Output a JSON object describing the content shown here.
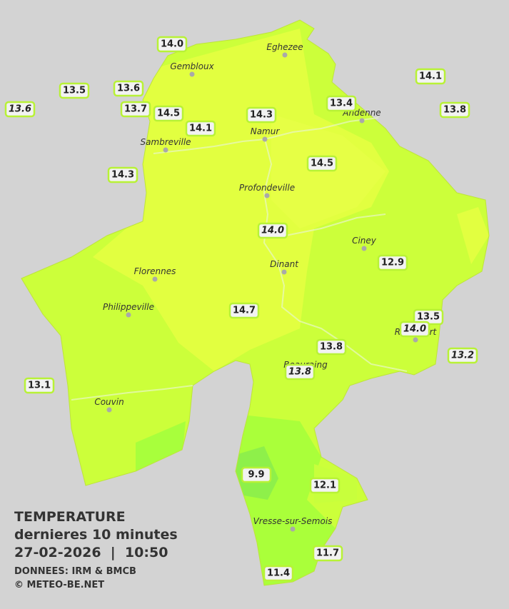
{
  "header": {
    "title": "TEMPERATURE",
    "subtitle": "dernieres 10 minutes",
    "datetime": "27-02-2026  |  10:50",
    "source": "DONNEES: IRM & BMCB",
    "copyright": "© METEO-BE.NET"
  },
  "towns": [
    "Eghezee",
    "Gembloux",
    "Andenne",
    "Namur",
    "Sambreville",
    "Profondeville",
    "Ciney",
    "Dinant",
    "Florennes",
    "Philippeville",
    "Rochefort",
    "Beauraing",
    "Couvin",
    "Vresse-sur-Semois"
  ],
  "stations": [
    "14.0",
    "13.5",
    "13.6",
    "13.6",
    "13.7",
    "14.5",
    "14.1",
    "14.3",
    "13.4",
    "14.1",
    "13.8",
    "14.3",
    "14.5",
    "14.0",
    "12.9",
    "14.7",
    "13.5",
    "14.0",
    "13.2",
    "13.8",
    "13.8",
    "13.1",
    "9.9",
    "12.1",
    "11.7",
    "11.4"
  ]
}
